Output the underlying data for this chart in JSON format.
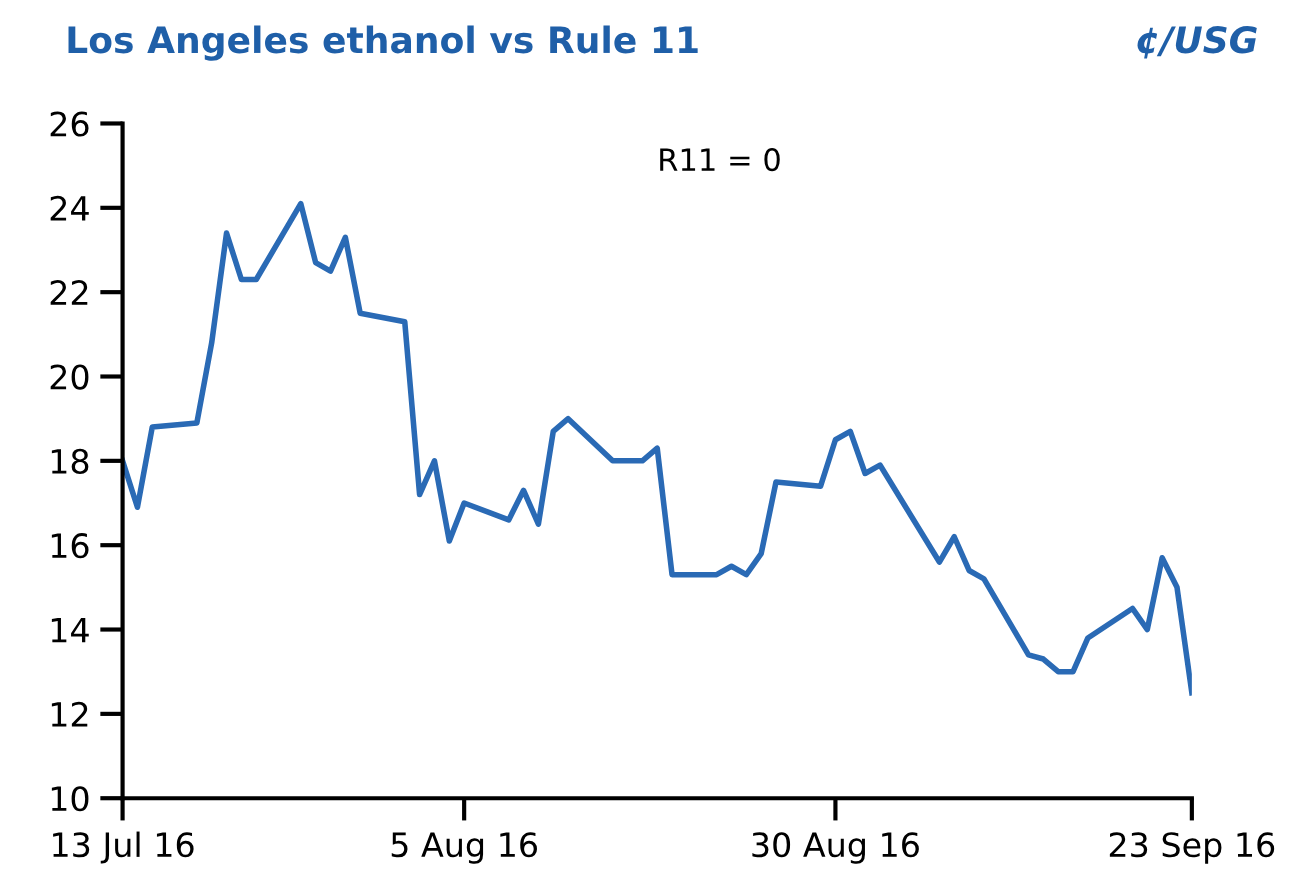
{
  "chart_data": {
    "type": "line",
    "title": "Los Angeles ethanol vs Rule 11",
    "ylabel": "¢/USG",
    "annotations": [
      "R11 = 0"
    ],
    "x": [
      "2016-07-13",
      "2016-07-14",
      "2016-07-15",
      "2016-07-18",
      "2016-07-19",
      "2016-07-20",
      "2016-07-21",
      "2016-07-22",
      "2016-07-25",
      "2016-07-26",
      "2016-07-27",
      "2016-07-28",
      "2016-07-29",
      "2016-08-01",
      "2016-08-02",
      "2016-08-03",
      "2016-08-04",
      "2016-08-05",
      "2016-08-08",
      "2016-08-09",
      "2016-08-10",
      "2016-08-11",
      "2016-08-12",
      "2016-08-15",
      "2016-08-16",
      "2016-08-17",
      "2016-08-18",
      "2016-08-19",
      "2016-08-22",
      "2016-08-23",
      "2016-08-24",
      "2016-08-25",
      "2016-08-26",
      "2016-08-29",
      "2016-08-30",
      "2016-08-31",
      "2016-09-01",
      "2016-09-02",
      "2016-09-06",
      "2016-09-07",
      "2016-09-08",
      "2016-09-09",
      "2016-09-12",
      "2016-09-13",
      "2016-09-14",
      "2016-09-15",
      "2016-09-16",
      "2016-09-19",
      "2016-09-20",
      "2016-09-21",
      "2016-09-22",
      "2016-09-23"
    ],
    "series": [
      {
        "color": "#2a6ab5",
        "values": [
          18.0,
          16.9,
          18.8,
          18.9,
          20.8,
          23.4,
          22.3,
          22.3,
          24.1,
          22.7,
          22.5,
          23.3,
          21.5,
          21.3,
          17.2,
          18.0,
          16.1,
          17.0,
          16.6,
          17.3,
          16.5,
          18.7,
          19.0,
          18.0,
          18.0,
          18.0,
          18.3,
          15.3,
          15.3,
          15.5,
          15.3,
          15.8,
          17.5,
          17.4,
          18.5,
          18.7,
          17.7,
          17.9,
          15.6,
          16.2,
          15.4,
          15.2,
          13.4,
          13.3,
          13.0,
          13.0,
          13.8,
          14.5,
          14.0,
          15.7,
          15.0,
          12.5
        ]
      }
    ],
    "xlim": [
      "2016-07-13",
      "2016-09-23"
    ],
    "xticks": [
      {
        "value": "2016-07-13",
        "label": "13 Jul 16"
      },
      {
        "value": "2016-08-05",
        "label": "5 Aug 16"
      },
      {
        "value": "2016-08-30",
        "label": "30 Aug 16"
      },
      {
        "value": "2016-09-23",
        "label": "23 Sep 16"
      }
    ],
    "ylim": [
      10,
      26
    ],
    "yticks": [
      10,
      12,
      14,
      16,
      18,
      20,
      22,
      24,
      26
    ],
    "grid": false,
    "legend": false,
    "marker": "none",
    "line_style": "solid"
  }
}
